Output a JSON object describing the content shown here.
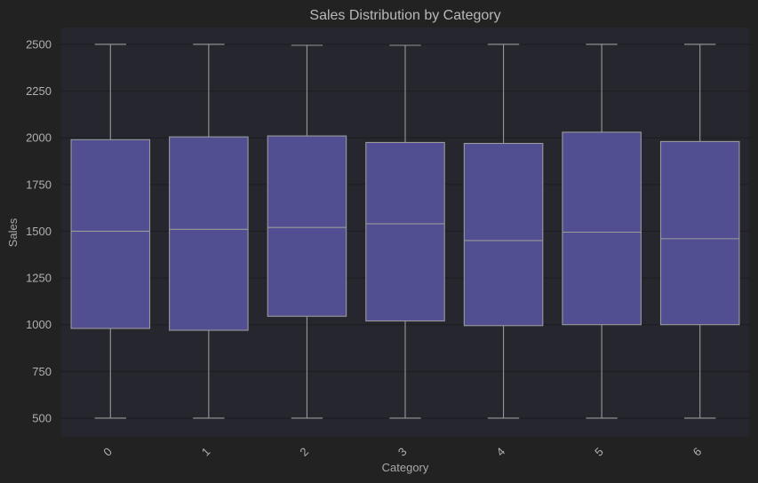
{
  "colors": {
    "figure_background": "#222222",
    "plot_background": "#25262e",
    "box_fill": "#514f92",
    "box_edge": "#9a9a9a",
    "grid": "#1c1c22",
    "text": "#b0b0b0"
  },
  "chart_data": {
    "type": "box",
    "title": "Sales Distribution by Category",
    "xlabel": "Category",
    "ylabel": "Sales",
    "categories": [
      "0",
      "1",
      "2",
      "3",
      "4",
      "5",
      "6"
    ],
    "ylim": [
      400,
      2590
    ],
    "yticks": [
      500,
      750,
      1000,
      1250,
      1500,
      1750,
      2000,
      2250,
      2500
    ],
    "grid": true,
    "boxes": [
      {
        "category": "0",
        "min": 500,
        "q1": 980,
        "median": 1500,
        "q3": 1990,
        "max": 2500
      },
      {
        "category": "1",
        "min": 500,
        "q1": 970,
        "median": 1510,
        "q3": 2005,
        "max": 2500
      },
      {
        "category": "2",
        "min": 500,
        "q1": 1045,
        "median": 1520,
        "q3": 2010,
        "max": 2495
      },
      {
        "category": "3",
        "min": 500,
        "q1": 1020,
        "median": 1540,
        "q3": 1975,
        "max": 2495
      },
      {
        "category": "4",
        "min": 500,
        "q1": 995,
        "median": 1450,
        "q3": 1970,
        "max": 2500
      },
      {
        "category": "5",
        "min": 500,
        "q1": 1000,
        "median": 1495,
        "q3": 2030,
        "max": 2500
      },
      {
        "category": "6",
        "min": 500,
        "q1": 1000,
        "median": 1460,
        "q3": 1980,
        "max": 2500
      }
    ]
  }
}
